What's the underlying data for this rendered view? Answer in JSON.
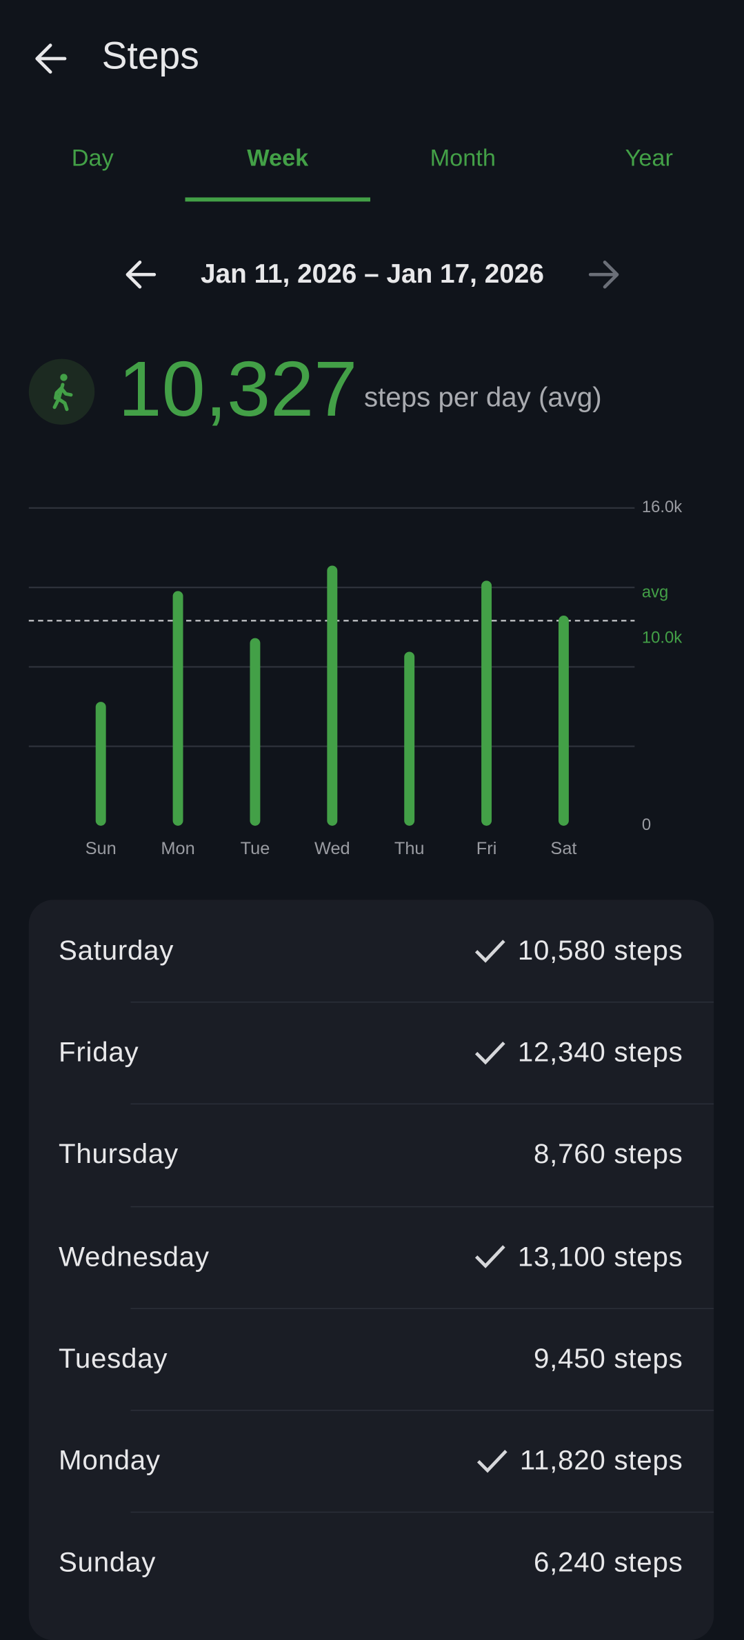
{
  "header": {
    "title": "Steps"
  },
  "tabs": [
    "Day",
    "Week",
    "Month",
    "Year"
  ],
  "active_tab": 1,
  "date_range": "Jan 11, 2026 – Jan 17, 2026",
  "summary": {
    "value": "10,327",
    "unit": "steps per day (avg)"
  },
  "chart_data": {
    "type": "bar",
    "categories": [
      "Sun",
      "Mon",
      "Tue",
      "Wed",
      "Thu",
      "Fri",
      "Sat"
    ],
    "values": [
      6240,
      11820,
      9450,
      13100,
      8760,
      12340,
      10580
    ],
    "color": "#43a047",
    "ylim": [
      0,
      16000
    ],
    "yticks": [
      0,
      {
        "value": 10000,
        "label": "10.0k",
        "color": "#43a047"
      },
      {
        "value": 16000,
        "label": "16.0k"
      }
    ],
    "grid_lines": [
      4000,
      8000,
      12000,
      16000
    ],
    "average": {
      "value": 10327,
      "label": "avg",
      "color": "#43a047"
    }
  },
  "days": [
    {
      "name": "Saturday",
      "steps": "10,580 steps",
      "goal_met": true
    },
    {
      "name": "Friday",
      "steps": "12,340 steps",
      "goal_met": true
    },
    {
      "name": "Thursday",
      "steps": "8,760 steps",
      "goal_met": false
    },
    {
      "name": "Wednesday",
      "steps": "13,100 steps",
      "goal_met": true
    },
    {
      "name": "Tuesday",
      "steps": "9,450 steps",
      "goal_met": false
    },
    {
      "name": "Monday",
      "steps": "11,820 steps",
      "goal_met": true
    },
    {
      "name": "Sunday",
      "steps": "6,240 steps",
      "goal_met": false
    }
  ]
}
